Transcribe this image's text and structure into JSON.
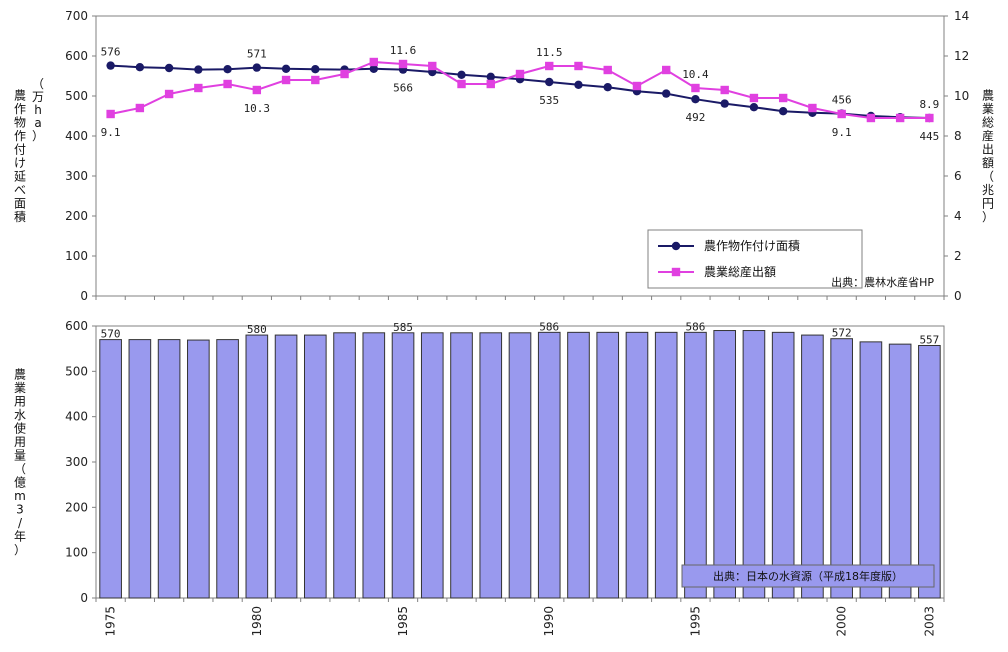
{
  "chart_data": [
    {
      "type": "line",
      "title": "",
      "x": [
        1975,
        1976,
        1977,
        1978,
        1979,
        1980,
        1981,
        1982,
        1983,
        1984,
        1985,
        1986,
        1987,
        1988,
        1989,
        1990,
        1991,
        1992,
        1993,
        1994,
        1995,
        1996,
        1997,
        1998,
        1999,
        2000,
        2001,
        2002,
        2003
      ],
      "ylabel": "農作物作付け延べ面積（万ha）",
      "ylabel2": "農業総産出額（兆円）",
      "ylim": [
        0,
        700
      ],
      "ylim2": [
        0,
        14
      ],
      "yticks": [
        "0",
        "100",
        "200",
        "300",
        "400",
        "500",
        "600",
        "700"
      ],
      "yticks2": [
        "0",
        "2",
        "4",
        "6",
        "8",
        "10",
        "12",
        "14"
      ],
      "legend_position": "bottom-right",
      "series": [
        {
          "name": "農作物作付け面積",
          "axis": "left",
          "color": "#1a1a66",
          "marker": "circle",
          "values": [
            576,
            572,
            570,
            566,
            567,
            571,
            568,
            567,
            566,
            568,
            566,
            560,
            553,
            548,
            542,
            535,
            528,
            522,
            512,
            506,
            492,
            481,
            472,
            462,
            458,
            456,
            450,
            447,
            445
          ],
          "labels": [
            {
              "i": 0,
              "text": "576"
            },
            {
              "i": 5,
              "text": "571"
            },
            {
              "i": 10,
              "text": "566"
            },
            {
              "i": 15,
              "text": "535"
            },
            {
              "i": 20,
              "text": "492"
            },
            {
              "i": 25,
              "text": "456"
            },
            {
              "i": 28,
              "text": "445"
            }
          ]
        },
        {
          "name": "農業総産出額",
          "axis": "right",
          "color": "#e040e0",
          "marker": "square",
          "values": [
            9.1,
            9.4,
            10.1,
            10.4,
            10.6,
            10.3,
            10.8,
            10.8,
            11.1,
            11.7,
            11.6,
            11.5,
            10.6,
            10.6,
            11.1,
            11.5,
            11.5,
            11.3,
            10.5,
            11.3,
            10.4,
            10.3,
            9.9,
            9.9,
            9.4,
            9.1,
            8.9,
            8.9,
            8.9
          ],
          "labels": [
            {
              "i": 0,
              "text": "9.1"
            },
            {
              "i": 5,
              "text": "10.3"
            },
            {
              "i": 10,
              "text": "11.6"
            },
            {
              "i": 15,
              "text": "11.5"
            },
            {
              "i": 20,
              "text": "10.4"
            },
            {
              "i": 25,
              "text": "9.1"
            },
            {
              "i": 28,
              "text": "8.9"
            }
          ]
        }
      ],
      "source": "出典：農林水産省HP"
    },
    {
      "type": "bar",
      "categories": [
        1975,
        1976,
        1977,
        1978,
        1979,
        1980,
        1981,
        1982,
        1983,
        1984,
        1985,
        1986,
        1987,
        1988,
        1989,
        1990,
        1991,
        1992,
        1993,
        1994,
        1995,
        1996,
        1997,
        1998,
        1999,
        2000,
        2001,
        2002,
        2003
      ],
      "values": [
        570,
        570,
        570,
        569,
        570,
        580,
        580,
        580,
        585,
        585,
        585,
        585,
        585,
        585,
        585,
        586,
        586,
        586,
        586,
        586,
        586,
        590,
        590,
        586,
        580,
        572,
        565,
        560,
        557
      ],
      "ylabel": "農業用水使用量（億m3/年）",
      "ylim": [
        0,
        600
      ],
      "yticks": [
        "0",
        "100",
        "200",
        "300",
        "400",
        "500",
        "600"
      ],
      "labels": [
        {
          "i": 0,
          "text": "570"
        },
        {
          "i": 5,
          "text": "580"
        },
        {
          "i": 10,
          "text": "585"
        },
        {
          "i": 15,
          "text": "586"
        },
        {
          "i": 20,
          "text": "586"
        },
        {
          "i": 25,
          "text": "572"
        },
        {
          "i": 28,
          "text": "557"
        }
      ],
      "xtick_labels": [
        {
          "i": 0,
          "text": "1975"
        },
        {
          "i": 5,
          "text": "1980"
        },
        {
          "i": 10,
          "text": "1985"
        },
        {
          "i": 15,
          "text": "1990"
        },
        {
          "i": 20,
          "text": "1995"
        },
        {
          "i": 25,
          "text": "2000"
        },
        {
          "i": 28,
          "text": "2003"
        }
      ],
      "bar_color": "#9999ee",
      "source": "出典：日本の水資源（平成18年度版）"
    }
  ]
}
